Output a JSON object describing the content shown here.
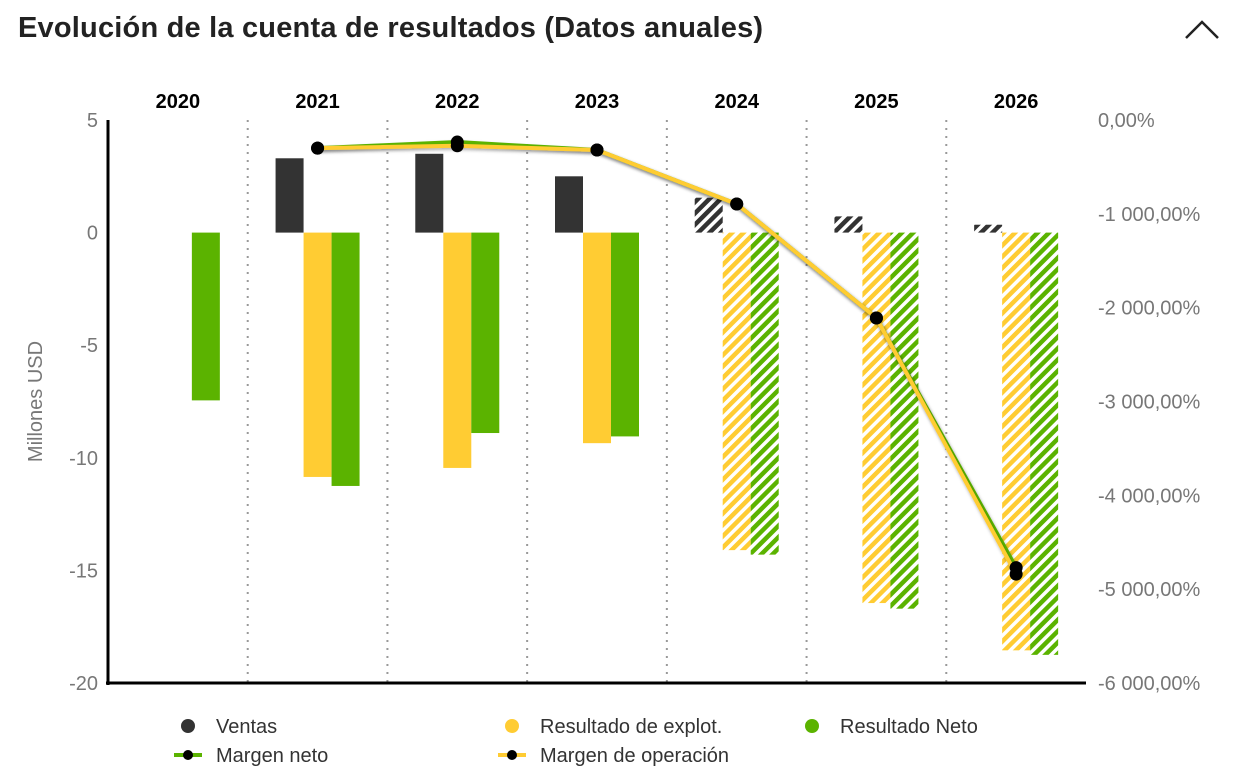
{
  "header": {
    "title": "Evolución de la cuenta de resultados (Datos anuales)",
    "collapse_icon": "chevron-up-icon"
  },
  "chart_data": {
    "type": "bar",
    "title": "Evolución de la cuenta de resultados (Datos anuales)",
    "categories": [
      "2020",
      "2021",
      "2022",
      "2023",
      "2024",
      "2025",
      "2026"
    ],
    "estimated_categories": [
      "2024",
      "2025",
      "2026"
    ],
    "ylabel": "Millones USD",
    "ylim": [
      -20,
      5
    ],
    "yticks": [
      "5",
      "0",
      "-5",
      "-10",
      "-15",
      "-20"
    ],
    "y2lim": [
      -6000,
      0
    ],
    "y2ticks": [
      "0,00%",
      "-1 000,00%",
      "-2 000,00%",
      "-3 000,00%",
      "-4 000,00%",
      "-5 000,00%",
      "-6 000,00%"
    ],
    "grid": "vertical dotted between categories",
    "legend_position": "bottom",
    "series": [
      {
        "name": "Ventas",
        "kind": "bar",
        "axis": "left",
        "color": "#333333",
        "values": [
          null,
          3.3,
          3.5,
          2.5,
          1.55,
          0.72,
          0.35
        ]
      },
      {
        "name": "Resultado de explot.",
        "kind": "bar",
        "axis": "left",
        "color": "#FFCC33",
        "values": [
          null,
          -10.85,
          -10.45,
          -9.35,
          -14.1,
          -16.45,
          -18.55
        ]
      },
      {
        "name": "Resultado Neto",
        "kind": "bar",
        "axis": "left",
        "color": "#5BB300",
        "values": [
          -7.45,
          -11.25,
          -8.9,
          -9.05,
          -14.3,
          -16.7,
          -18.75
        ]
      },
      {
        "name": "Margen neto",
        "kind": "line",
        "axis": "right",
        "color": "#5BB300",
        "values": [
          null,
          -300,
          -235,
          -320,
          -895,
          -2110,
          -4770
        ]
      },
      {
        "name": "Margen de operación",
        "kind": "line",
        "axis": "right",
        "color": "#FFCC33",
        "values": [
          null,
          -300,
          -275,
          -320,
          -895,
          -2110,
          -4840
        ]
      }
    ]
  }
}
